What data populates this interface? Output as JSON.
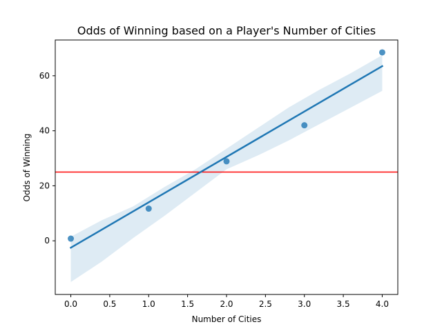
{
  "chart_data": {
    "type": "scatter",
    "title": "Odds of Winning based on a Player's Number of Cities",
    "xlabel": "Number of Cities",
    "ylabel": "Odds of Winning",
    "xlim": [
      -0.2,
      4.2
    ],
    "ylim": [
      -19.5,
      73.0
    ],
    "x_ticks": [
      "0.0",
      "0.5",
      "1.0",
      "1.5",
      "2.0",
      "2.5",
      "3.0",
      "3.5",
      "4.0"
    ],
    "y_ticks": [
      "0",
      "20",
      "40",
      "60"
    ],
    "grid": false,
    "points": {
      "x": [
        0,
        1,
        2,
        3,
        4
      ],
      "y": [
        0.8,
        11.7,
        28.9,
        42.0,
        68.5
      ]
    },
    "regression_line": {
      "x": [
        0,
        4
      ],
      "y": [
        -2.5,
        63.5
      ]
    },
    "confidence_band": {
      "x": [
        0,
        0.4,
        0.8,
        1.2,
        1.6,
        2.0,
        2.4,
        2.8,
        3.2,
        3.6,
        4.0
      ],
      "upper": [
        1.5,
        7.5,
        12.5,
        19.5,
        26.0,
        33.5,
        41.0,
        48.5,
        55.0,
        61.0,
        67.5
      ],
      "lower": [
        -15.0,
        -7.5,
        1.0,
        9.0,
        17.5,
        26.0,
        31.0,
        36.5,
        42.5,
        48.5,
        54.5
      ]
    },
    "reference_line": {
      "y": 25
    },
    "colors": {
      "points": "#1f77b4",
      "regression_line": "#1f77b4",
      "confidence_band": "#1f77b4",
      "reference_line": "#ff0000",
      "axis": "#000000"
    }
  }
}
